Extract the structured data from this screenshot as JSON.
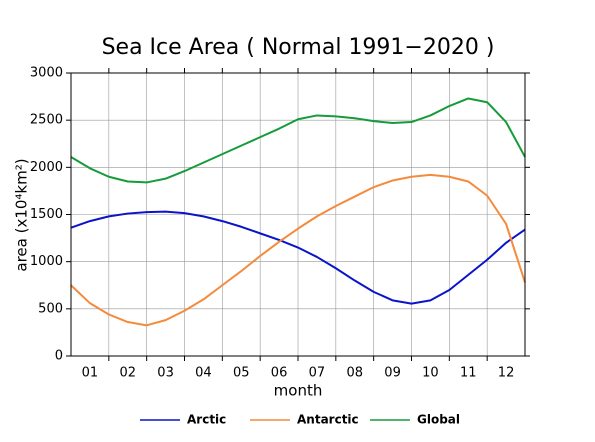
{
  "chart_data": {
    "type": "line",
    "title": "Sea Ice Area ( Normal 1991−2020 )",
    "x_label": "month",
    "y_label": "area (x10⁴km²)",
    "x": [
      0,
      0.5,
      1,
      1.5,
      2,
      2.5,
      3,
      3.5,
      4,
      4.5,
      5,
      5.5,
      6,
      6.5,
      7,
      7.5,
      8,
      8.5,
      9,
      9.5,
      10,
      10.5,
      11,
      11.5,
      12
    ],
    "xlim": [
      0,
      12
    ],
    "xticks": [
      {
        "value": 0.5,
        "label": "01"
      },
      {
        "value": 1.5,
        "label": "02"
      },
      {
        "value": 2.5,
        "label": "03"
      },
      {
        "value": 3.5,
        "label": "04"
      },
      {
        "value": 4.5,
        "label": "05"
      },
      {
        "value": 5.5,
        "label": "06"
      },
      {
        "value": 6.5,
        "label": "07"
      },
      {
        "value": 7.5,
        "label": "08"
      },
      {
        "value": 8.5,
        "label": "09"
      },
      {
        "value": 9.5,
        "label": "10"
      },
      {
        "value": 10.5,
        "label": "11"
      },
      {
        "value": 11.5,
        "label": "12"
      }
    ],
    "xgrid": [
      1,
      2,
      3,
      4,
      5,
      6,
      7,
      8,
      9,
      10,
      11
    ],
    "ylim": [
      0,
      3000
    ],
    "yticks": [
      0,
      500,
      1000,
      1500,
      2000,
      2500,
      3000
    ],
    "grid": true,
    "series": [
      {
        "name": "Arctic",
        "color": "#0a14c8",
        "values": [
          1360,
          1430,
          1480,
          1510,
          1525,
          1530,
          1515,
          1480,
          1430,
          1370,
          1300,
          1230,
          1150,
          1050,
          930,
          800,
          680,
          590,
          555,
          590,
          700,
          860,
          1020,
          1200,
          1340
        ]
      },
      {
        "name": "Antarctic",
        "color": "#f58a3c",
        "values": [
          750,
          560,
          440,
          360,
          325,
          380,
          480,
          600,
          750,
          900,
          1060,
          1210,
          1350,
          1480,
          1590,
          1690,
          1790,
          1860,
          1900,
          1920,
          1900,
          1850,
          1700,
          1400,
          780
        ]
      },
      {
        "name": "Global",
        "color": "#169b3a",
        "values": [
          2110,
          1990,
          1900,
          1850,
          1840,
          1880,
          1960,
          2050,
          2140,
          2230,
          2320,
          2410,
          2510,
          2550,
          2540,
          2520,
          2490,
          2470,
          2480,
          2550,
          2650,
          2730,
          2690,
          2480,
          2110
        ]
      }
    ]
  }
}
